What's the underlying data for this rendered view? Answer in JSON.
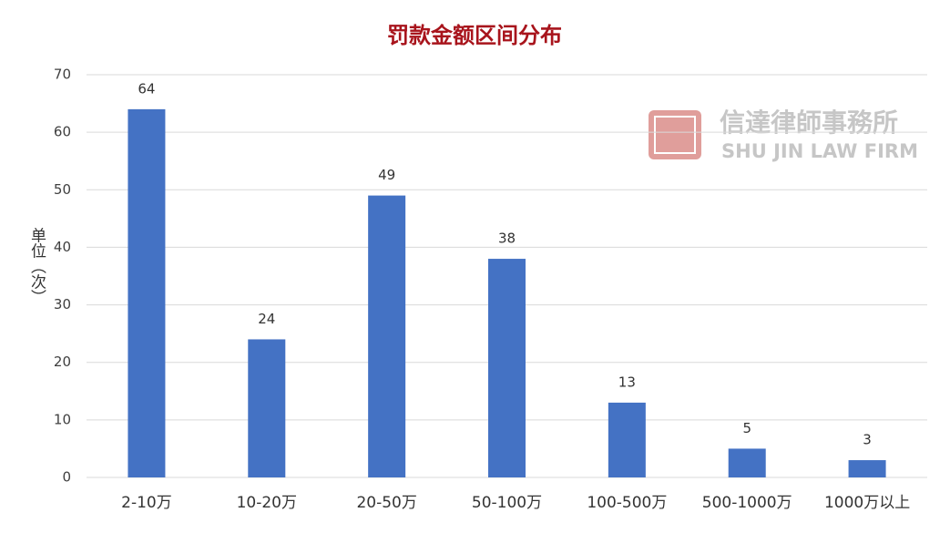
{
  "chart_data": {
    "type": "bar",
    "title": "罚款金额区间分布",
    "y_label": "单位（次）",
    "categories": [
      "2-10万",
      "10-20万",
      "20-50万",
      "50-100万",
      "100-500万",
      "500-1000万",
      "1000万以上"
    ],
    "values": [
      64,
      24,
      49,
      38,
      13,
      5,
      3
    ],
    "color": "#4472c4",
    "ylim": [
      0,
      70
    ],
    "yticks": [
      0,
      10,
      20,
      30,
      40,
      50,
      60,
      70
    ],
    "grid": true,
    "watermark": {
      "name": "信達律師事務所",
      "name_en": "SHU JIN LAW FIRM"
    }
  }
}
